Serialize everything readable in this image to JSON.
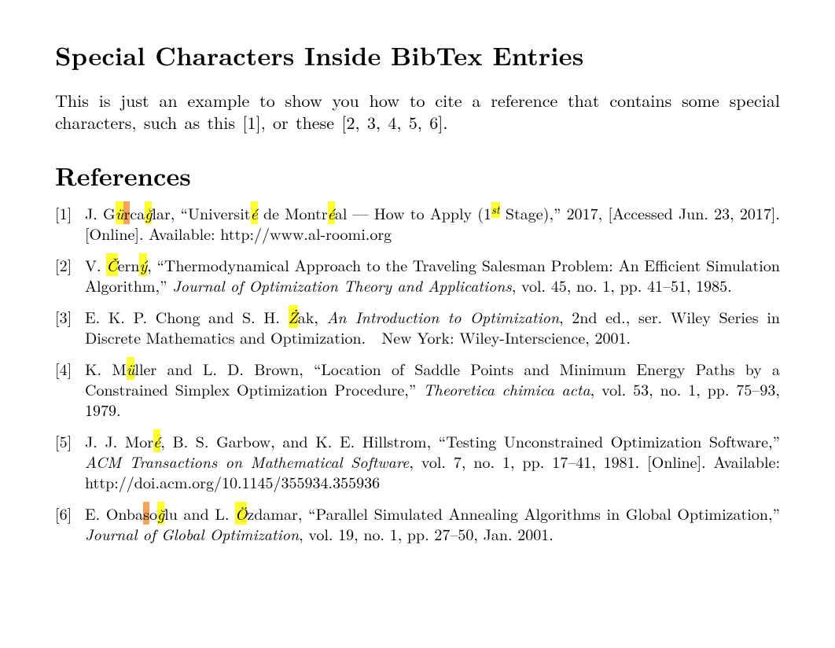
{
  "title": "Special Characters Inside BibTex Entries",
  "intro_a": "This is just an example to show you how to cite a reference that contains some special characters, such as this [",
  "intro_cite1": "1",
  "intro_b": "], or these [",
  "intro_cite2": "2, 3, 4, 5, 6",
  "intro_c": "].",
  "references_heading": "References",
  "highlight_yellow": "#ffff2e",
  "highlight_orange": "#f7a35c",
  "ref1": {
    "a": "J. G",
    "h1": "ü",
    "h2": "r",
    "b": "ca",
    "h3": "ğ",
    "c": "lar, “Universit",
    "h4": "é",
    "d": " de Montr",
    "h5": "é",
    "e": "al — How to Apply (1",
    "h6": "st",
    "f": " Stage),” 2017, [Accessed Jun. 23, 2017]. [Online]. Available: http://www.al-roomi.org"
  },
  "ref2": {
    "a": "V. ",
    "h1": "Č",
    "b": "ern",
    "h2": "ý",
    "c": ", “Thermodynamical Approach to the Traveling Salesman Problem: An Efficient Simulation Algorithm,” ",
    "journal": "Journal of Optimization Theory and Applications",
    "d": ", vol. 45, no. 1, pp. 41–51, 1985."
  },
  "ref3": {
    "a": "E. K. P. Chong and S. H. ",
    "h1": "Ż",
    "b": "ak, ",
    "title_it": "An Introduction to Optimization",
    "c": ", 2nd ed., ser. Wiley Series in Discrete Mathematics and Optimization. New York: Wiley-Interscience, 2001."
  },
  "ref4": {
    "a": "K. M",
    "h1": "ü",
    "b": "ller and L. D. Brown, “Location of Saddle Points and Minimum Energy Paths by a Constrained Simplex Optimization Procedure,” ",
    "journal": "Theoretica chimica acta",
    "c": ", vol. 53, no. 1, pp. 75–93, 1979."
  },
  "ref5": {
    "a": "J. J. Mor",
    "h1": "é",
    "b": ", B. S. Garbow, and K. E. Hillstrom, “Testing Unconstrained Optimization Software,” ",
    "journal": "ACM Transactions on Mathematical Software",
    "c": ", vol. 7, no. 1, pp. 17–41, 1981. [Online]. Available: http://doi.acm.org/10.1145/355934.355936"
  },
  "ref6": {
    "a": "E. Onba",
    "h1": "s",
    "b": "o",
    "h2": "ğ",
    "c": "lu and L. ",
    "h3": "Ö",
    "d": "zdamar, “Parallel Simulated Annealing Algorithms in Global Optimization,” ",
    "journal": "Journal of Global Optimization",
    "e": ", vol. 19, no. 1, pp. 27–50, Jan. 2001."
  }
}
